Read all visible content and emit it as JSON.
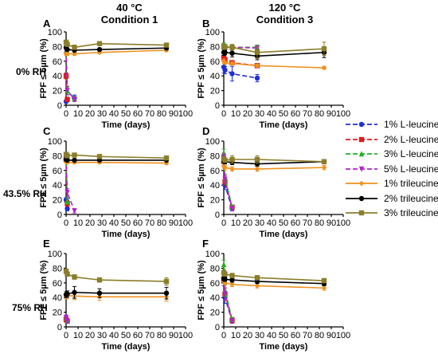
{
  "column_titles": [
    {
      "line1": "40 °C",
      "line2": "Condition 1"
    },
    {
      "line1": "120 °C",
      "line2": "Condition 3"
    }
  ],
  "row_labels": [
    "0% RH",
    "43.5% RH",
    "75% RH"
  ],
  "legend": [
    {
      "label": "1% L-leucine",
      "color": "#1f2fd6",
      "dash": "6,3",
      "marker": "circle"
    },
    {
      "label": "2% L-leucine",
      "color": "#e01b1b",
      "dash": "6,3",
      "marker": "square"
    },
    {
      "label": "3% L-leucine",
      "color": "#22b022",
      "dash": "6,3",
      "marker": "triangle-up"
    },
    {
      "label": "5% L-leucine",
      "color": "#b025c8",
      "dash": "6,3",
      "marker": "triangle-down"
    },
    {
      "label": "1% trileucine",
      "color": "#f0901e",
      "dash": "",
      "marker": "diamond"
    },
    {
      "label": "2% trileucine",
      "color": "#000000",
      "dash": "",
      "marker": "circle"
    },
    {
      "label": "3% trileucine",
      "color": "#8b7d2a",
      "dash": "",
      "marker": "square"
    }
  ],
  "chart_data": [
    {
      "panel": "A",
      "type": "line",
      "xlabel": "Time (days)",
      "ylabel": "FPF ≤ 5µm (%)",
      "xlim": [
        0,
        100
      ],
      "ylim": [
        0,
        100
      ],
      "xticks": [
        0,
        10,
        20,
        30,
        40,
        50,
        60,
        70,
        80,
        90,
        100
      ],
      "yticks": [
        0,
        20,
        40,
        60,
        80,
        100
      ],
      "series": [
        {
          "name": "1% L-leucine",
          "x": [
            0,
            1,
            7
          ],
          "y": [
            5,
            8,
            10
          ],
          "err": [
            2,
            3,
            4
          ]
        },
        {
          "name": "2% L-leucine",
          "x": [
            0,
            1
          ],
          "y": [
            40,
            8
          ],
          "err": [
            4,
            3
          ]
        },
        {
          "name": "3% L-leucine",
          "x": [
            0,
            1,
            7
          ],
          "y": [
            75,
            20,
            9
          ],
          "err": [
            4,
            5,
            3
          ]
        },
        {
          "name": "5% L-leucine",
          "x": [
            0,
            1,
            7
          ],
          "y": [
            74,
            20,
            8
          ],
          "err": [
            3,
            6,
            3
          ]
        },
        {
          "name": "1% trileucine",
          "x": [
            0,
            1,
            7,
            28,
            84
          ],
          "y": [
            70,
            70,
            70,
            72,
            75
          ],
          "err": [
            2,
            2,
            2,
            2,
            2
          ]
        },
        {
          "name": "2% trileucine",
          "x": [
            0,
            1,
            7,
            28,
            84
          ],
          "y": [
            79,
            76,
            75,
            76,
            78
          ],
          "err": [
            2,
            2,
            2,
            2,
            2
          ]
        },
        {
          "name": "3% trileucine",
          "x": [
            0,
            1,
            7,
            28,
            84
          ],
          "y": [
            86,
            83,
            79,
            84,
            82
          ],
          "err": [
            2,
            2,
            3,
            2,
            2
          ]
        }
      ]
    },
    {
      "panel": "B",
      "type": "line",
      "xlabel": "Time (days)",
      "ylabel": "FPF ≤ 5µm (%)",
      "xlim": [
        0,
        100
      ],
      "ylim": [
        0,
        100
      ],
      "xticks": [
        0,
        10,
        20,
        30,
        40,
        50,
        60,
        70,
        80,
        90,
        100
      ],
      "yticks": [
        0,
        20,
        40,
        60,
        80,
        100
      ],
      "series": [
        {
          "name": "1% L-leucine",
          "x": [
            0,
            1,
            7,
            28
          ],
          "y": [
            52,
            48,
            43,
            37
          ],
          "err": [
            8,
            5,
            10,
            5
          ]
        },
        {
          "name": "2% L-leucine",
          "x": [
            0,
            1,
            7,
            28
          ],
          "y": [
            65,
            62,
            58,
            54
          ],
          "err": [
            5,
            3,
            3,
            3
          ]
        },
        {
          "name": "3% L-leucine",
          "x": [
            0,
            1,
            7,
            28
          ],
          "y": [
            80,
            80,
            79,
            79
          ],
          "err": [
            5,
            3,
            3,
            3
          ]
        },
        {
          "name": "5% L-leucine",
          "x": [
            0,
            1,
            7,
            28
          ],
          "y": [
            80,
            79,
            79,
            78
          ],
          "err": [
            3,
            3,
            3,
            3
          ]
        },
        {
          "name": "1% trileucine",
          "x": [
            0,
            1,
            7,
            28,
            84
          ],
          "y": [
            60,
            58,
            57,
            54,
            51
          ],
          "err": [
            3,
            2,
            2,
            2,
            2
          ]
        },
        {
          "name": "2% trileucine",
          "x": [
            0,
            1,
            7,
            28,
            84
          ],
          "y": [
            72,
            72,
            71,
            67,
            72
          ],
          "err": [
            4,
            3,
            5,
            5,
            7
          ]
        },
        {
          "name": "3% trileucine",
          "x": [
            0,
            1,
            7,
            28,
            84
          ],
          "y": [
            80,
            79,
            79,
            72,
            77
          ],
          "err": [
            4,
            3,
            4,
            8,
            9
          ]
        }
      ]
    },
    {
      "panel": "C",
      "type": "line",
      "xlabel": "Time (days)",
      "ylabel": "FPF ≤ 5µm (%)",
      "xlim": [
        0,
        100
      ],
      "ylim": [
        0,
        100
      ],
      "xticks": [
        0,
        10,
        20,
        30,
        40,
        50,
        60,
        70,
        80,
        90,
        100
      ],
      "yticks": [
        0,
        20,
        40,
        60,
        80,
        100
      ],
      "series": [
        {
          "name": "1% L-leucine",
          "x": [
            0,
            1
          ],
          "y": [
            20,
            8
          ],
          "err": [
            3,
            3
          ]
        },
        {
          "name": "2% L-leucine",
          "x": [
            0,
            1
          ],
          "y": [
            75,
            15
          ],
          "err": [
            4,
            4
          ]
        },
        {
          "name": "3% L-leucine",
          "x": [
            0,
            1
          ],
          "y": [
            78,
            18
          ],
          "err": [
            4,
            4
          ]
        },
        {
          "name": "5% L-leucine",
          "x": [
            0,
            1,
            7
          ],
          "y": [
            76,
            30,
            5
          ],
          "err": [
            4,
            5,
            3
          ]
        },
        {
          "name": "1% trileucine",
          "x": [
            0,
            1,
            7,
            28,
            84
          ],
          "y": [
            72,
            71,
            71,
            71,
            70
          ],
          "err": [
            2,
            2,
            2,
            2,
            2
          ]
        },
        {
          "name": "2% trileucine",
          "x": [
            0,
            1,
            7,
            28,
            84
          ],
          "y": [
            75,
            74,
            74,
            74,
            74
          ],
          "err": [
            2,
            2,
            2,
            2,
            2
          ]
        },
        {
          "name": "3% trileucine",
          "x": [
            0,
            1,
            7,
            28,
            84
          ],
          "y": [
            82,
            80,
            81,
            79,
            77
          ],
          "err": [
            2,
            2,
            2,
            2,
            2
          ]
        }
      ]
    },
    {
      "panel": "D",
      "type": "line",
      "xlabel": "Time (days)",
      "ylabel": "FPF ≤ 5µm (%)",
      "xlim": [
        0,
        100
      ],
      "ylim": [
        0,
        100
      ],
      "xticks": [
        0,
        10,
        20,
        30,
        40,
        50,
        60,
        70,
        80,
        90,
        100
      ],
      "yticks": [
        0,
        20,
        40,
        60,
        80,
        100
      ],
      "series": [
        {
          "name": "1% L-leucine",
          "x": [
            0,
            1,
            7
          ],
          "y": [
            72,
            40,
            8
          ],
          "err": [
            5,
            6,
            3
          ]
        },
        {
          "name": "2% L-leucine",
          "x": [
            0,
            1,
            7
          ],
          "y": [
            72,
            45,
            10
          ],
          "err": [
            5,
            5,
            3
          ]
        },
        {
          "name": "3% L-leucine",
          "x": [
            0,
            1,
            7
          ],
          "y": [
            84,
            50,
            10
          ],
          "err": [
            5,
            5,
            3
          ]
        },
        {
          "name": "5% L-leucine",
          "x": [
            0,
            1,
            7
          ],
          "y": [
            78,
            48,
            8
          ],
          "err": [
            5,
            5,
            3
          ]
        },
        {
          "name": "1% trileucine",
          "x": [
            0,
            1,
            7,
            28,
            84
          ],
          "y": [
            66,
            64,
            62,
            62,
            64
          ],
          "err": [
            3,
            3,
            3,
            3,
            3
          ]
        },
        {
          "name": "2% trileucine",
          "x": [
            0,
            1,
            7,
            28,
            84
          ],
          "y": [
            73,
            72,
            71,
            69,
            72
          ],
          "err": [
            3,
            3,
            3,
            3,
            3
          ]
        },
        {
          "name": "3% trileucine",
          "x": [
            0,
            1,
            7,
            28,
            84
          ],
          "y": [
            76,
            74,
            75,
            75,
            72
          ],
          "err": [
            3,
            3,
            5,
            5,
            3
          ]
        }
      ]
    },
    {
      "panel": "E",
      "type": "line",
      "xlabel": "Time (days)",
      "ylabel": "FPF ≤ 5µm (%)",
      "xlim": [
        0,
        100
      ],
      "ylim": [
        0,
        100
      ],
      "xticks": [
        0,
        10,
        20,
        30,
        40,
        50,
        60,
        70,
        80,
        90,
        100
      ],
      "yticks": [
        0,
        20,
        40,
        60,
        80,
        100
      ],
      "series": [
        {
          "name": "1% L-leucine",
          "x": [
            0,
            1
          ],
          "y": [
            12,
            8
          ],
          "err": [
            4,
            3
          ]
        },
        {
          "name": "2% L-leucine",
          "x": [
            0,
            1
          ],
          "y": [
            10,
            8
          ],
          "err": [
            3,
            3
          ]
        },
        {
          "name": "3% L-leucine",
          "x": [
            0,
            1
          ],
          "y": [
            12,
            8
          ],
          "err": [
            3,
            3
          ]
        },
        {
          "name": "5% L-leucine",
          "x": [
            0,
            1
          ],
          "y": [
            13,
            8
          ],
          "err": [
            3,
            3
          ]
        },
        {
          "name": "1% trileucine",
          "x": [
            0,
            1,
            7,
            28,
            84
          ],
          "y": [
            42,
            43,
            42,
            41,
            41
          ],
          "err": [
            4,
            4,
            5,
            5,
            6
          ]
        },
        {
          "name": "2% trileucine",
          "x": [
            0,
            1,
            7,
            28,
            84
          ],
          "y": [
            44,
            45,
            47,
            46,
            46
          ],
          "err": [
            4,
            4,
            8,
            6,
            8
          ]
        },
        {
          "name": "3% trileucine",
          "x": [
            0,
            1,
            7,
            28,
            84
          ],
          "y": [
            76,
            72,
            68,
            64,
            62
          ],
          "err": [
            3,
            3,
            3,
            3,
            5
          ]
        }
      ]
    },
    {
      "panel": "F",
      "type": "line",
      "xlabel": "Time (days)",
      "ylabel": "FPF ≤ 5µm (%)",
      "xlim": [
        0,
        100
      ],
      "ylim": [
        0,
        100
      ],
      "xticks": [
        0,
        10,
        20,
        30,
        40,
        50,
        60,
        70,
        80,
        90,
        100
      ],
      "yticks": [
        0,
        20,
        40,
        60,
        80,
        100
      ],
      "series": [
        {
          "name": "1% L-leucine",
          "x": [
            0,
            1,
            7
          ],
          "y": [
            62,
            40,
            8
          ],
          "err": [
            6,
            8,
            3
          ]
        },
        {
          "name": "2% L-leucine",
          "x": [
            0,
            1,
            7
          ],
          "y": [
            65,
            45,
            9
          ],
          "err": [
            6,
            8,
            3
          ]
        },
        {
          "name": "3% L-leucine",
          "x": [
            0,
            1,
            7
          ],
          "y": [
            85,
            50,
            10
          ],
          "err": [
            6,
            8,
            3
          ]
        },
        {
          "name": "5% L-leucine",
          "x": [
            0,
            1,
            7
          ],
          "y": [
            70,
            45,
            8
          ],
          "err": [
            6,
            8,
            3
          ]
        },
        {
          "name": "1% trileucine",
          "x": [
            0,
            1,
            7,
            28,
            84
          ],
          "y": [
            62,
            60,
            58,
            56,
            53
          ],
          "err": [
            3,
            3,
            3,
            3,
            3
          ]
        },
        {
          "name": "2% trileucine",
          "x": [
            0,
            1,
            7,
            28,
            84
          ],
          "y": [
            66,
            65,
            64,
            62,
            59
          ],
          "err": [
            3,
            3,
            3,
            3,
            3
          ]
        },
        {
          "name": "3% trileucine",
          "x": [
            0,
            1,
            7,
            28,
            84
          ],
          "y": [
            74,
            72,
            70,
            67,
            63
          ],
          "err": [
            3,
            3,
            3,
            3,
            3
          ]
        }
      ]
    }
  ]
}
